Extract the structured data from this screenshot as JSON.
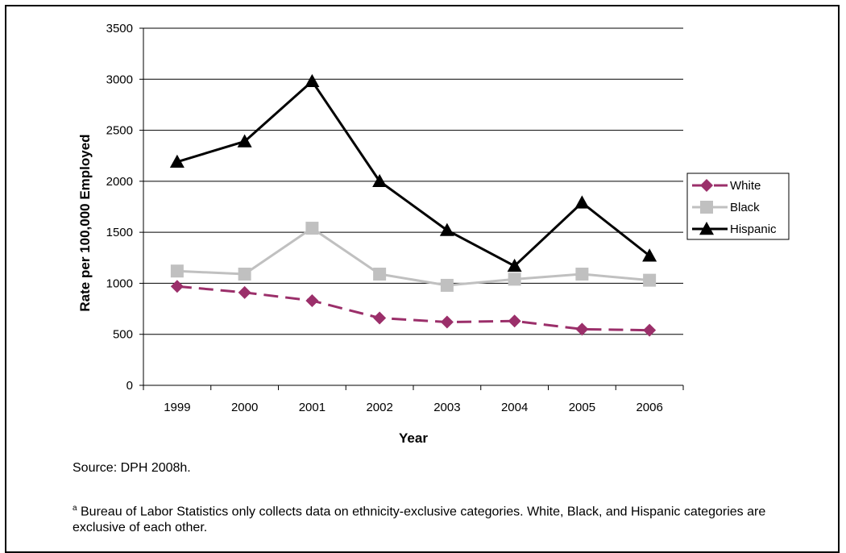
{
  "chart_data": {
    "type": "line",
    "title": "",
    "xlabel": "Year",
    "ylabel": "Rate per 100,000 Employed",
    "categories": [
      "1999",
      "2000",
      "2001",
      "2002",
      "2003",
      "2004",
      "2005",
      "2006"
    ],
    "ylim": [
      0,
      3500
    ],
    "yticks": [
      0,
      500,
      1000,
      1500,
      2000,
      2500,
      3000,
      3500
    ],
    "grid": true,
    "legend_position": "right",
    "series": [
      {
        "name": "White",
        "values": [
          970,
          910,
          830,
          660,
          620,
          630,
          550,
          540
        ],
        "color": "#9B2F6A",
        "marker": "diamond",
        "dash": true
      },
      {
        "name": "Black",
        "values": [
          1120,
          1090,
          1540,
          1090,
          980,
          1040,
          1090,
          1030
        ],
        "color": "#C0C0C0",
        "marker": "square",
        "dash": false
      },
      {
        "name": "Hispanic",
        "values": [
          2190,
          2390,
          2980,
          2000,
          1520,
          1170,
          1790,
          1270
        ],
        "color": "#000000",
        "marker": "triangle",
        "dash": false
      }
    ]
  },
  "source": "Source: DPH 2008h.",
  "footnote": {
    "marker": "a",
    "text": " Bureau of Labor Statistics only collects data on ethnicity-exclusive categories.  White, Black, and Hispanic categories are exclusive of each other."
  }
}
